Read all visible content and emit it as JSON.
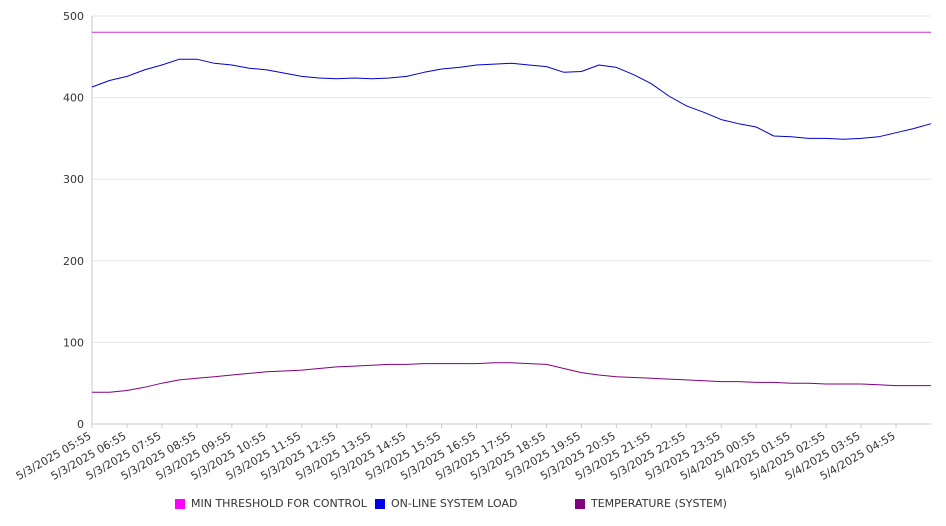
{
  "chart_data": {
    "type": "line",
    "title": "",
    "xlabel": "",
    "ylabel": "",
    "ylim": [
      0,
      500
    ],
    "yticks": [
      "0",
      "100",
      "200",
      "300",
      "400",
      "500"
    ],
    "grid": true,
    "legend_position": "bottom",
    "x_tick_labels": [
      "5/3/2025 05:55",
      "5/3/2025 06:55",
      "5/3/2025 07:55",
      "5/3/2025 08:55",
      "5/3/2025 09:55",
      "5/3/2025 10:55",
      "5/3/2025 11:55",
      "5/3/2025 12:55",
      "5/3/2025 13:55",
      "5/3/2025 14:55",
      "5/3/2025 15:55",
      "5/3/2025 16:55",
      "5/3/2025 17:55",
      "5/3/2025 18:55",
      "5/3/2025 19:55",
      "5/3/2025 20:55",
      "5/3/2025 21:55",
      "5/3/2025 22:55",
      "5/3/2025 23:55",
      "5/4/2025 00:55",
      "5/4/2025 01:55",
      "5/4/2025 02:55",
      "5/4/2025 03:55",
      "5/4/2025 04:55"
    ],
    "x_hours": [
      0,
      0.5,
      1,
      1.5,
      2,
      2.5,
      3,
      3.5,
      4,
      4.5,
      5,
      5.5,
      6,
      6.5,
      7,
      7.5,
      8,
      8.5,
      9,
      9.5,
      10,
      10.5,
      11,
      11.5,
      12,
      12.5,
      13,
      13.5,
      14,
      14.5,
      15,
      15.5,
      16,
      16.5,
      17,
      17.5,
      18,
      18.5,
      19,
      19.5,
      20,
      20.5,
      21,
      21.5,
      22,
      22.5,
      23,
      23.5,
      24
    ],
    "series": [
      {
        "name": "MIN THRESHOLD FOR CONTROL",
        "color": "#cc33cc",
        "values": [
          480,
          480,
          480,
          480,
          480,
          480,
          480,
          480,
          480,
          480,
          480,
          480,
          480,
          480,
          480,
          480,
          480,
          480,
          480,
          480,
          480,
          480,
          480,
          480,
          480,
          480,
          480,
          480,
          480,
          480,
          480,
          480,
          480,
          480,
          480,
          480,
          480,
          480,
          480,
          480,
          480,
          480,
          480,
          480,
          480,
          480,
          480,
          480,
          480
        ]
      },
      {
        "name": "ON-LINE SYSTEM LOAD",
        "color": "#0000cc",
        "values": [
          413,
          421,
          426,
          434,
          440,
          447,
          447,
          442,
          440,
          436,
          434,
          430,
          426,
          424,
          423,
          424,
          423,
          424,
          426,
          431,
          435,
          437,
          440,
          441,
          442,
          440,
          438,
          431,
          432,
          440,
          437,
          428,
          417,
          402,
          390,
          382,
          373,
          368,
          364,
          353,
          352,
          350,
          350,
          349,
          350,
          352,
          357,
          362,
          368
        ]
      },
      {
        "name": "TEMPERATURE (SYSTEM)",
        "color": "#800080",
        "values": [
          39,
          39,
          41,
          45,
          50,
          54,
          56,
          58,
          60,
          62,
          64,
          65,
          66,
          68,
          70,
          71,
          72,
          73,
          73,
          74,
          74,
          74,
          74,
          75,
          75,
          74,
          73,
          68,
          63,
          60,
          58,
          57,
          56,
          55,
          54,
          53,
          52,
          52,
          51,
          51,
          50,
          50,
          49,
          49,
          49,
          48,
          47,
          47,
          47
        ]
      }
    ]
  }
}
